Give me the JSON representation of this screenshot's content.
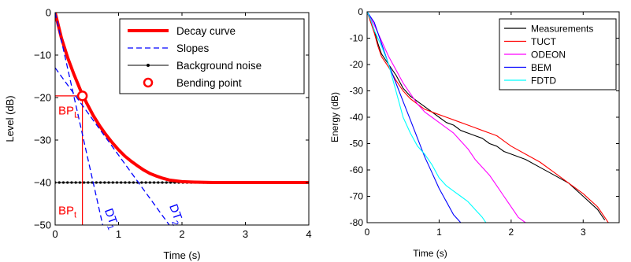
{
  "chart_data": [
    {
      "type": "line",
      "xlabel": "Time (s)",
      "ylabel": "Level (dB)",
      "xlim": [
        0,
        4
      ],
      "ylim": [
        -50,
        0
      ],
      "xticks": [
        0,
        1,
        2,
        3,
        4
      ],
      "yticks": [
        0,
        -10,
        -20,
        -30,
        -40,
        -50
      ],
      "xtick_labels": [
        "0",
        "1",
        "2",
        "3",
        "4"
      ],
      "ytick_labels": [
        "0",
        "−10",
        "−20",
        "−30",
        "−40",
        "−50"
      ],
      "grid": false,
      "legend_position": "top-right",
      "legend": [
        "Decay curve",
        "Slopes",
        "Background noise",
        "Bending point"
      ],
      "series": [
        {
          "name": "Decay curve",
          "color": "#ff0000",
          "style": "solid-thick",
          "x": [
            0,
            0.1,
            0.2,
            0.3,
            0.4,
            0.5,
            0.6,
            0.7,
            0.8,
            0.9,
            1.0,
            1.1,
            1.2,
            1.3,
            1.4,
            1.5,
            1.6,
            1.7,
            1.8,
            1.9,
            2.0,
            2.2,
            2.5,
            3.0,
            3.5,
            4.0
          ],
          "y": [
            0,
            -6.0,
            -10.7,
            -14.7,
            -18.3,
            -21.4,
            -24.2,
            -26.6,
            -28.7,
            -30.6,
            -32.3,
            -33.8,
            -35.0,
            -36.1,
            -37.1,
            -37.9,
            -38.5,
            -39.0,
            -39.4,
            -39.6,
            -39.8,
            -39.9,
            -40,
            -40,
            -40,
            -40
          ]
        },
        {
          "name": "Slopes",
          "color": "#0000ff",
          "style": "dashed",
          "segments": [
            {
              "x": [
                0,
                0.75
              ],
              "y": [
                0,
                -50
              ]
            },
            {
              "x": [
                0,
                1.8
              ],
              "y": [
                -13,
                -50
              ]
            }
          ]
        },
        {
          "name": "Background noise",
          "color": "#000000",
          "style": "dotted-markers",
          "x": [
            0,
            4
          ],
          "y": [
            -40,
            -40
          ]
        },
        {
          "name": "Bending point",
          "color": "#ff0000",
          "style": "circle-marker",
          "x": [
            0.43
          ],
          "y": [
            -19.6
          ]
        }
      ],
      "guides": {
        "color": "#ff0000",
        "bp_x": 0.43,
        "bp_y": -19.6
      },
      "annotations": [
        {
          "text": "BP",
          "sub": "L",
          "x": 0.05,
          "y": -24.0,
          "color": "#ff0000"
        },
        {
          "text": "BP",
          "sub": "t",
          "x": 0.05,
          "y": -47.5,
          "color": "#ff0000"
        },
        {
          "text": "DT",
          "sub": "1",
          "x": 0.78,
          "y": -46.5,
          "color": "#0000ff",
          "rotate": 70
        },
        {
          "text": "DT",
          "sub": "2",
          "x": 1.8,
          "y": -45.5,
          "color": "#0000ff",
          "rotate": 70
        }
      ]
    },
    {
      "type": "line",
      "xlabel": "Time (s)",
      "ylabel": "Energy (dB)",
      "xlim": [
        0,
        3.5
      ],
      "ylim": [
        -80,
        0
      ],
      "xticks": [
        0,
        1,
        2,
        3
      ],
      "yticks": [
        0,
        -10,
        -20,
        -30,
        -40,
        -50,
        -60,
        -70,
        -80
      ],
      "xtick_labels": [
        "0",
        "1",
        "2",
        "3"
      ],
      "ytick_labels": [
        "0",
        "-10",
        "-20",
        "-30",
        "-40",
        "-50",
        "-60",
        "-70",
        "-80"
      ],
      "grid": false,
      "legend_position": "top-right",
      "legend": [
        "Measurements",
        "TUCT",
        "ODEON",
        "BEM",
        "FDTD"
      ],
      "series": [
        {
          "name": "Measurements",
          "color": "#000000",
          "x": [
            0,
            0.05,
            0.1,
            0.15,
            0.2,
            0.3,
            0.4,
            0.5,
            0.6,
            0.7,
            0.8,
            0.9,
            1.0,
            1.1,
            1.2,
            1.3,
            1.4,
            1.5,
            1.6,
            1.7,
            1.8,
            1.9,
            2.0,
            2.2,
            2.4,
            2.6,
            2.8,
            3.0,
            3.2,
            3.3
          ],
          "y": [
            0,
            -3,
            -7,
            -12,
            -16,
            -20,
            -24,
            -29,
            -32,
            -34,
            -36,
            -38,
            -40,
            -42,
            -43,
            -45,
            -46,
            -47,
            -48,
            -50,
            -51,
            -53,
            -54,
            -56,
            -59,
            -62,
            -65,
            -70,
            -75,
            -79
          ]
        },
        {
          "name": "TUCT",
          "color": "#ff0000",
          "x": [
            0,
            0.05,
            0.1,
            0.15,
            0.2,
            0.3,
            0.4,
            0.5,
            0.6,
            0.7,
            0.8,
            0.9,
            1.0,
            1.1,
            1.2,
            1.3,
            1.4,
            1.5,
            1.6,
            1.7,
            1.8,
            1.9,
            2.0,
            2.2,
            2.4,
            2.6,
            2.8,
            3.0,
            3.2,
            3.35
          ],
          "y": [
            0,
            -4,
            -8,
            -13,
            -17,
            -21,
            -26,
            -30,
            -33,
            -35,
            -37,
            -38,
            -39,
            -40,
            -41,
            -42,
            -43,
            -44,
            -45,
            -46,
            -47,
            -49,
            -51,
            -54,
            -57,
            -61,
            -65,
            -69,
            -74,
            -80
          ]
        },
        {
          "name": "ODEON",
          "color": "#ff00ff",
          "x": [
            0,
            0.1,
            0.2,
            0.3,
            0.4,
            0.5,
            0.6,
            0.7,
            0.8,
            0.9,
            1.0,
            1.1,
            1.2,
            1.3,
            1.4,
            1.5,
            1.6,
            1.7,
            1.8,
            1.9,
            2.0,
            2.1,
            2.2
          ],
          "y": [
            0,
            -5,
            -11,
            -17,
            -22,
            -27,
            -31,
            -35,
            -38,
            -40,
            -42,
            -44,
            -46,
            -49,
            -52,
            -56,
            -59,
            -62,
            -66,
            -70,
            -74,
            -78,
            -80
          ]
        },
        {
          "name": "BEM",
          "color": "#0000ff",
          "x": [
            0,
            0.1,
            0.2,
            0.3,
            0.4,
            0.5,
            0.6,
            0.7,
            0.8,
            0.9,
            1.0,
            1.1,
            1.2,
            1.3
          ],
          "y": [
            0,
            -4,
            -12,
            -20,
            -27,
            -34,
            -41,
            -48,
            -55,
            -61,
            -67,
            -72,
            -77,
            -80
          ]
        },
        {
          "name": "FDTD",
          "color": "#00ffff",
          "x": [
            0,
            0.05,
            0.1,
            0.2,
            0.3,
            0.4,
            0.5,
            0.6,
            0.7,
            0.8,
            0.9,
            1.0,
            1.1,
            1.2,
            1.3,
            1.4,
            1.5,
            1.6,
            1.65
          ],
          "y": [
            0,
            -3,
            -7,
            -13,
            -20,
            -30,
            -40,
            -46,
            -51,
            -54,
            -58,
            -63,
            -66,
            -68,
            -70,
            -72,
            -75,
            -78,
            -80
          ]
        }
      ]
    }
  ]
}
